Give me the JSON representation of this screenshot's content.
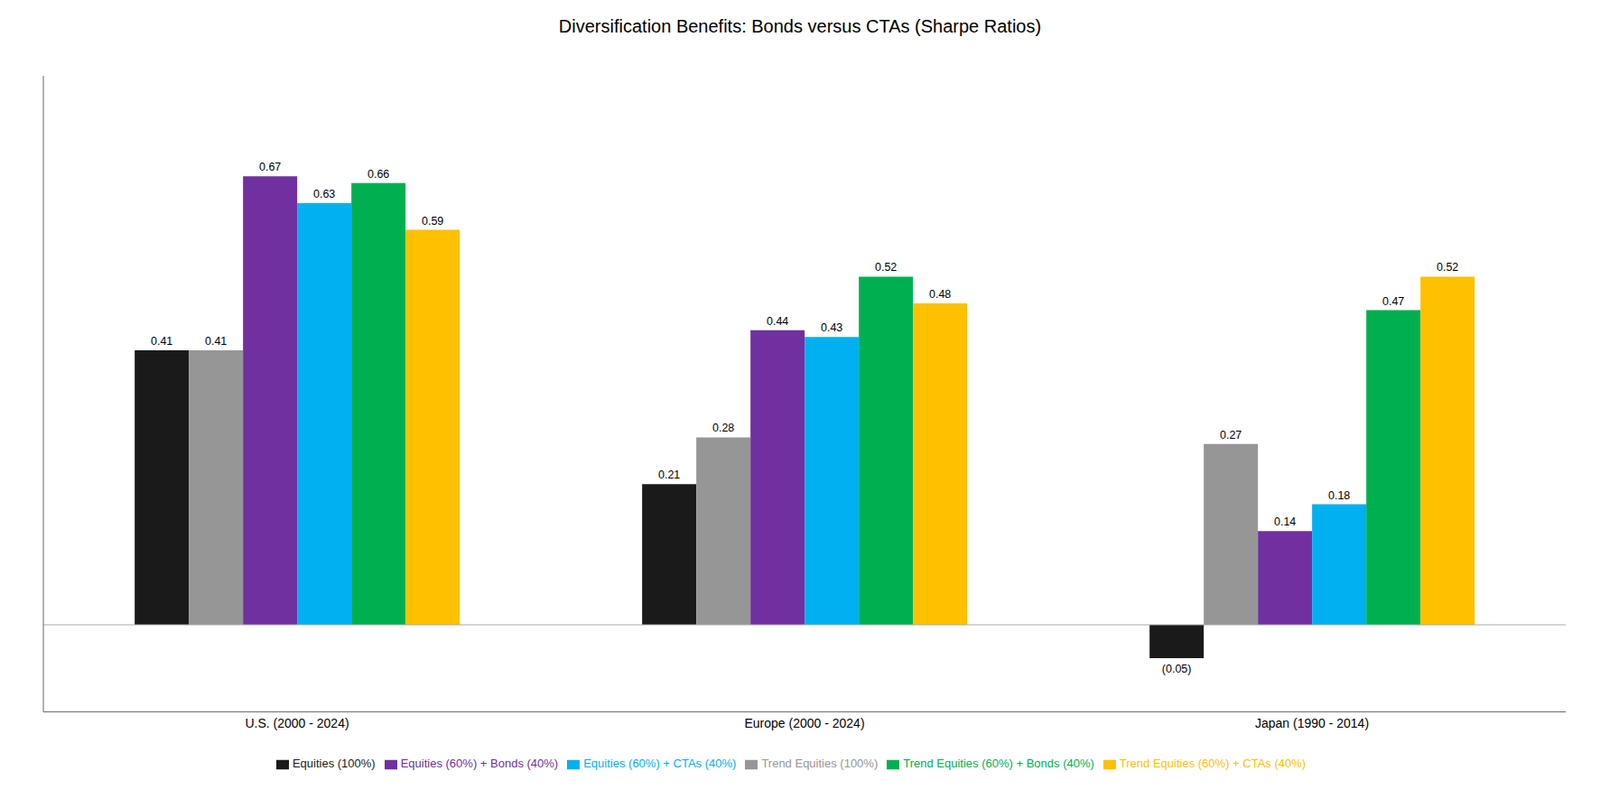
{
  "chart_data": {
    "type": "bar",
    "title": "Diversification Benefits: Bonds versus CTAs (Sharpe Ratios)",
    "categories": [
      "U.S. (2000 - 2024)",
      "Europe (2000 - 2024)",
      "Japan (1990 - 2014)"
    ],
    "series": [
      {
        "name": "Equities (100%)",
        "color": "#1a1a1a",
        "values": [
          0.41,
          0.21,
          -0.05
        ],
        "value_labels": [
          "0.41",
          "0.21",
          "(0.05)"
        ]
      },
      {
        "name": "Trend Equities (100%)",
        "color": "#969696",
        "values": [
          0.41,
          0.28,
          0.27
        ]
      },
      {
        "name": "Equities (60%) + Bonds (40%)",
        "color": "#7030A0",
        "values": [
          0.67,
          0.44,
          0.14
        ]
      },
      {
        "name": "Equities (60%) + CTAs (40%)",
        "color": "#00B0F0",
        "values": [
          0.63,
          0.43,
          0.18
        ]
      },
      {
        "name": "Trend Equities (60%) + Bonds (40%)",
        "color": "#00B050",
        "values": [
          0.66,
          0.52,
          0.47
        ]
      },
      {
        "name": "Trend Equities (60%) + CTAs (40%)",
        "color": "#FFC000",
        "values": [
          0.59,
          0.48,
          0.52
        ]
      }
    ],
    "ylim": [
      -0.13,
      0.82
    ],
    "tick_labels": "x",
    "data_labels": true,
    "legend": "bottom",
    "grid": false
  }
}
